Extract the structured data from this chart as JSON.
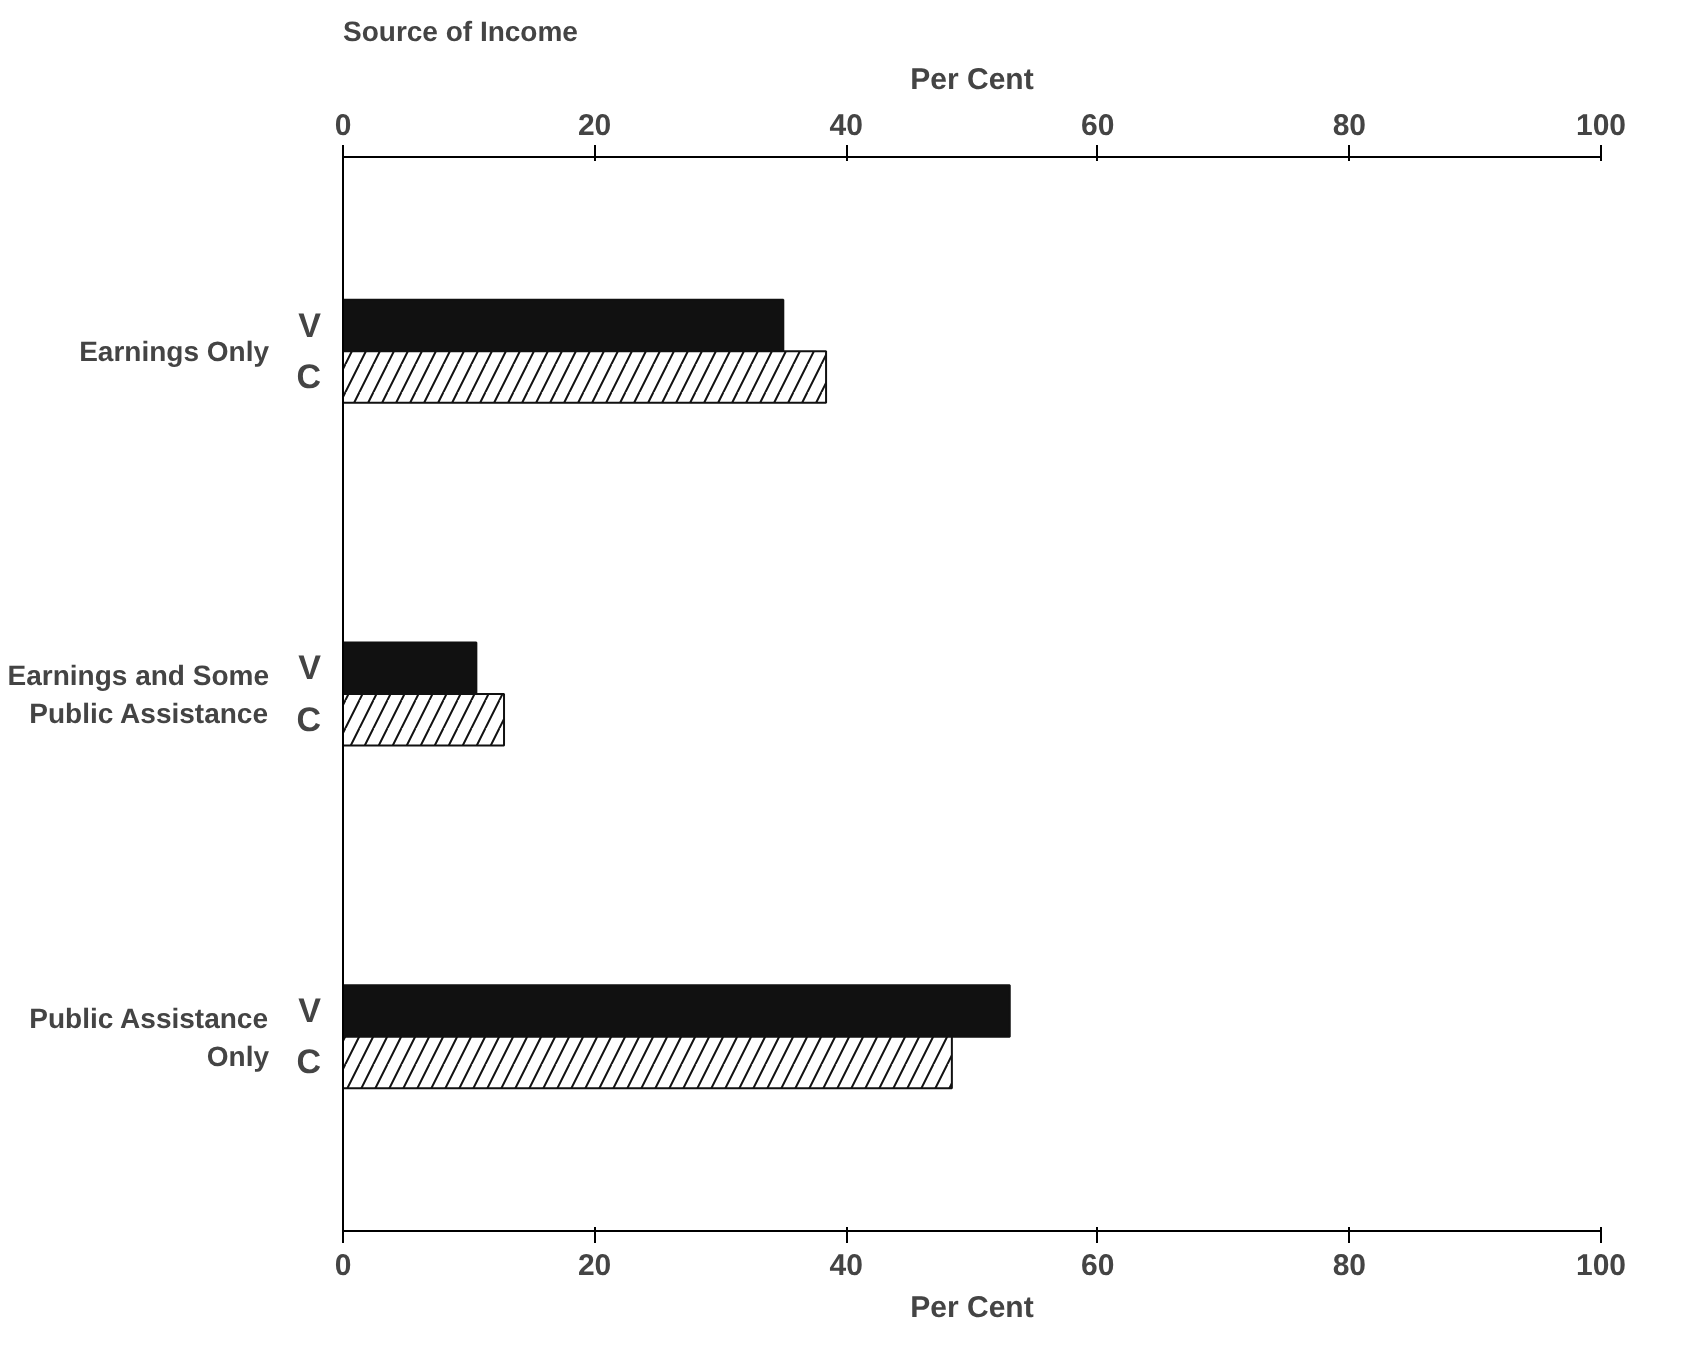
{
  "chart_data": {
    "type": "bar",
    "orientation": "horizontal",
    "xlabel": "Per Cent",
    "x2label": "Per Cent",
    "ylabel": "Source of Income",
    "categories": [
      "Earnings Only",
      "Earnings and Some Public Assistance",
      "Public Assistance Only"
    ],
    "series": [
      {
        "name": "V",
        "color": "#111111",
        "values": [
          35,
          10.6,
          53
        ]
      },
      {
        "name": "C",
        "color": "#ffffff",
        "values": [
          38.4,
          12.8,
          48.4
        ]
      }
    ],
    "xlim": [
      0,
      100
    ],
    "xticks": [
      0,
      20,
      40,
      60,
      80,
      100
    ],
    "x2lim": [
      0,
      100
    ],
    "x2ticks": [
      0,
      20,
      40,
      60,
      80,
      100
    ],
    "grid": false
  }
}
